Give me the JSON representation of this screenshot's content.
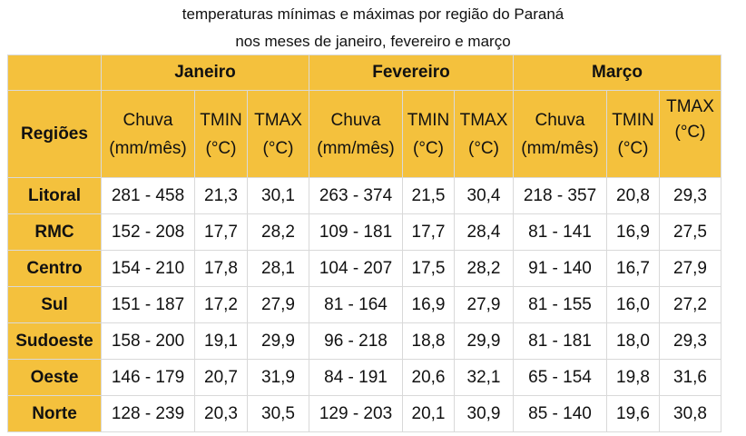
{
  "title": {
    "line1": "temperaturas mínimas e máximas por região  do Paraná",
    "line2": "nos meses de janeiro, fevereiro e março"
  },
  "table": {
    "regions_header": "Regiões",
    "months": [
      "Janeiro",
      "Fevereiro",
      "Março"
    ],
    "subheaders": [
      {
        "name": "Chuva",
        "unit": "(mm/mês)"
      },
      {
        "name": "TMIN",
        "unit": "(°C)"
      },
      {
        "name": "TMAX",
        "unit": "(°C)"
      }
    ],
    "rows": [
      {
        "region": "Litoral",
        "values": [
          "281 - 458",
          "21,3",
          "30,1",
          "263 - 374",
          "21,5",
          "30,4",
          "218 - 357",
          "20,8",
          "29,3"
        ]
      },
      {
        "region": "RMC",
        "values": [
          "152 - 208",
          "17,7",
          "28,2",
          "109 - 181",
          "17,7",
          "28,4",
          "81 - 141",
          "16,9",
          "27,5"
        ]
      },
      {
        "region": "Centro",
        "values": [
          "154 - 210",
          "17,8",
          "28,1",
          "104 - 207",
          "17,5",
          "28,2",
          "91 - 140",
          "16,7",
          "27,9"
        ]
      },
      {
        "region": "Sul",
        "values": [
          "151 - 187",
          "17,2",
          "27,9",
          "81 - 164",
          "16,9",
          "27,9",
          "81 - 155",
          "16,0",
          "27,2"
        ]
      },
      {
        "region": "Sudoeste",
        "values": [
          "158 - 200",
          "19,1",
          "29,9",
          "96 - 218",
          "18,8",
          "29,9",
          "81 - 181",
          "18,0",
          "29,3"
        ]
      },
      {
        "region": "Oeste",
        "values": [
          "146 - 179",
          "20,7",
          "31,9",
          "84 - 191",
          "20,6",
          "32,1",
          "65 - 154",
          "19,8",
          "31,6"
        ]
      },
      {
        "region": "Norte",
        "values": [
          "128 - 239",
          "20,3",
          "30,5",
          "129 - 203",
          "20,1",
          "30,9",
          "85 - 140",
          "19,6",
          "30,8"
        ]
      }
    ]
  },
  "colors": {
    "header_bg": "#f4c13d",
    "border": "#d9d9d9"
  }
}
